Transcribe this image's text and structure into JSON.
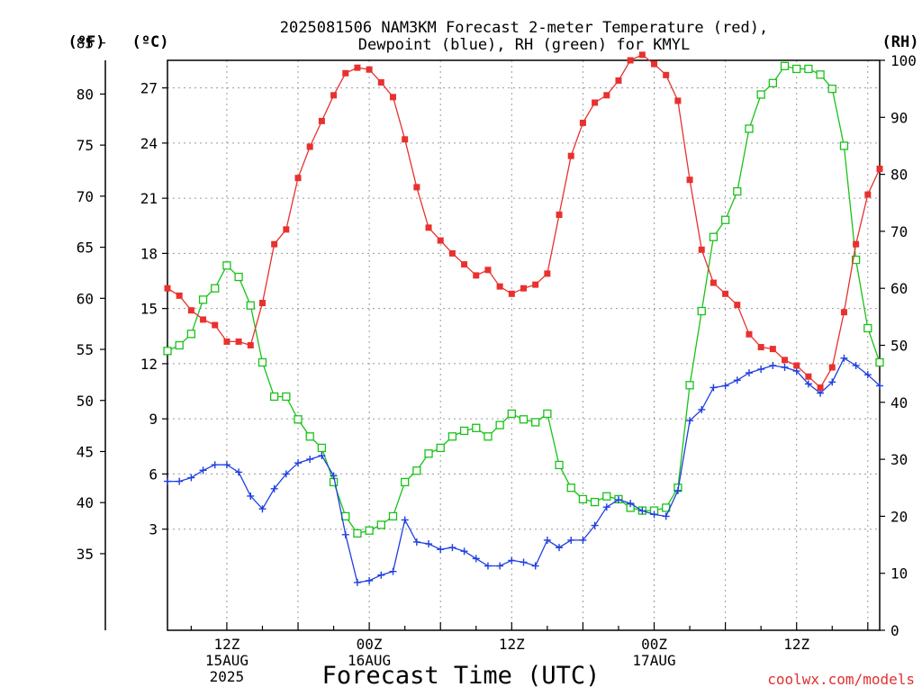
{
  "chart_data": {
    "type": "line",
    "title_line1": "2025081506 NAM3KM Forecast 2-meter Temperature (red),",
    "title_line2": "Dewpoint (blue), RH (green) for KMYL",
    "xlabel": "Forecast Time (UTC)",
    "credit": "coolwx.com/models",
    "axis_f_label": "(ºF)",
    "axis_c_label": "(ºC)",
    "axis_rh_label": "(RH)",
    "x_start_hours": 7,
    "x_end_hours": 67,
    "y_c_range": [
      -2.5,
      28.5
    ],
    "y_rh_range": [
      0,
      100
    ],
    "f_ticks": [
      "85",
      "80",
      "75",
      "70",
      "65",
      "60",
      "55",
      "50",
      "45",
      "40",
      "35"
    ],
    "c_ticks": [
      "27",
      "24",
      "21",
      "18",
      "15",
      "12",
      "9",
      "6",
      "3"
    ],
    "rh_ticks": [
      "100",
      "90",
      "80",
      "70",
      "60",
      "50",
      "40",
      "30",
      "20",
      "10",
      "0"
    ],
    "x_ticks": [
      {
        "h": 12,
        "lines": [
          "12Z",
          "15AUG",
          "2025"
        ]
      },
      {
        "h": 24,
        "lines": [
          "00Z",
          "16AUG"
        ]
      },
      {
        "h": 36,
        "lines": [
          "12Z"
        ]
      },
      {
        "h": 48,
        "lines": [
          "00Z",
          "17AUG"
        ]
      },
      {
        "h": 60,
        "lines": [
          "12Z"
        ]
      }
    ],
    "colors": {
      "temperature": "#e8312f",
      "dewpoint": "#1f3fe0",
      "rh": "#19c219",
      "grid": "#9a9a9a"
    },
    "series": [
      {
        "name": "Temperature",
        "unit": "C",
        "marker": "filled-square",
        "values": [
          16.1,
          15.7,
          14.9,
          14.4,
          14.1,
          13.2,
          13.2,
          13.0,
          15.3,
          18.5,
          19.3,
          22.1,
          23.8,
          25.2,
          26.6,
          27.8,
          28.1,
          28.0,
          27.3,
          26.5,
          24.2,
          21.6,
          19.4,
          18.7,
          18.0,
          17.4,
          16.8,
          17.1,
          16.2,
          15.8,
          16.1,
          16.3,
          16.9,
          20.1,
          23.3,
          25.1,
          26.2,
          26.6,
          27.4,
          28.5,
          28.8,
          28.3,
          27.7,
          26.3,
          22.0,
          18.2,
          16.4,
          15.8,
          15.2,
          13.6,
          12.9,
          12.8,
          12.2,
          11.9,
          11.3,
          10.7,
          11.8,
          14.8,
          18.5,
          21.2,
          22.6
        ]
      },
      {
        "name": "Dewpoint",
        "unit": "C",
        "marker": "plus",
        "values": [
          5.6,
          5.6,
          5.8,
          6.2,
          6.5,
          6.5,
          6.1,
          4.8,
          4.1,
          5.2,
          6.0,
          6.6,
          6.8,
          7.0,
          5.9,
          2.7,
          0.1,
          0.2,
          0.5,
          0.7,
          3.5,
          2.3,
          2.2,
          1.9,
          2.0,
          1.8,
          1.4,
          1.0,
          1.0,
          1.3,
          1.2,
          1.0,
          2.4,
          2.0,
          2.4,
          2.4,
          3.2,
          4.2,
          4.6,
          4.4,
          4.0,
          3.8,
          3.7,
          5.1,
          8.9,
          9.5,
          10.7,
          10.8,
          11.1,
          11.5,
          11.7,
          11.9,
          11.8,
          11.6,
          10.9,
          10.4,
          11.0,
          12.3,
          11.9,
          11.4,
          10.8
        ]
      },
      {
        "name": "RH",
        "unit": "%",
        "marker": "open-square",
        "values": [
          49,
          50,
          52,
          58,
          60,
          64,
          62,
          57,
          47,
          41,
          41,
          37,
          34,
          32,
          26,
          20,
          17,
          17.5,
          18.5,
          20,
          26,
          28,
          31,
          32,
          34,
          35,
          35.5,
          34,
          36,
          38,
          37,
          36.5,
          38,
          29,
          25,
          23,
          22.5,
          23.5,
          23,
          21.5,
          21,
          21,
          21.5,
          25,
          43,
          56,
          69,
          72,
          77,
          88,
          94,
          96,
          99,
          98.5,
          98.5,
          97.5,
          95,
          85,
          65,
          53,
          47
        ]
      }
    ]
  }
}
